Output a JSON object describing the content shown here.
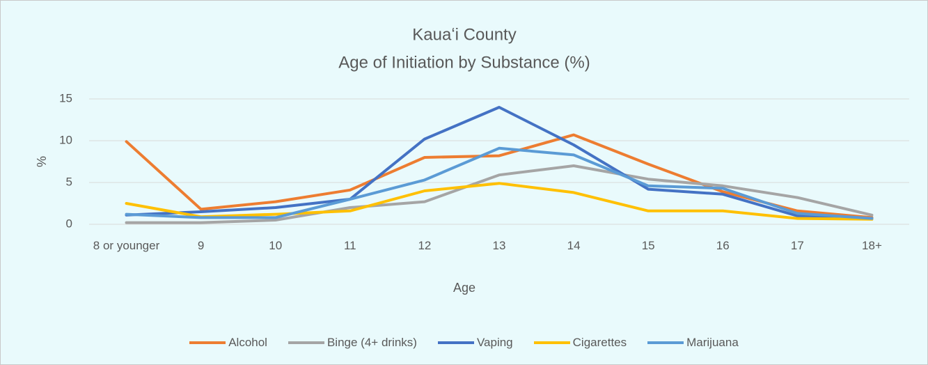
{
  "chart_data": {
    "type": "line",
    "title": "Kauaʻi County",
    "subtitle": "Age of Initiation by Substance (%)",
    "x_label": "Age",
    "y_label": "%",
    "categories": [
      "8 or younger",
      "9",
      "10",
      "11",
      "12",
      "13",
      "14",
      "15",
      "16",
      "17",
      "18+"
    ],
    "series": [
      {
        "name": "Alcohol",
        "color": "#ed7d31",
        "values": [
          9.9,
          1.8,
          2.7,
          4.1,
          8.0,
          8.2,
          10.7,
          7.2,
          3.9,
          1.6,
          0.8
        ]
      },
      {
        "name": "Binge (4+ drinks)",
        "color": "#a5a5a5",
        "values": [
          0.2,
          0.2,
          0.5,
          2.0,
          2.7,
          5.9,
          7.0,
          5.4,
          4.6,
          3.2,
          1.1
        ]
      },
      {
        "name": "Vaping",
        "color": "#4472c4",
        "values": [
          1.1,
          1.5,
          2.0,
          3.0,
          10.2,
          14.0,
          9.5,
          4.2,
          3.6,
          1.0,
          0.7
        ]
      },
      {
        "name": "Cigarettes",
        "color": "#ffc000",
        "values": [
          2.5,
          0.9,
          1.2,
          1.6,
          4.0,
          4.9,
          3.8,
          1.6,
          1.6,
          0.7,
          0.6
        ]
      },
      {
        "name": "Marijuana",
        "color": "#5b9bd5",
        "values": [
          1.2,
          0.8,
          0.8,
          3.0,
          5.3,
          9.1,
          8.3,
          4.6,
          4.3,
          1.3,
          0.7
        ]
      }
    ],
    "ylim": [
      0,
      15
    ],
    "yticks": [
      0,
      5,
      10,
      15
    ],
    "grid": true,
    "legend": "bottom"
  }
}
